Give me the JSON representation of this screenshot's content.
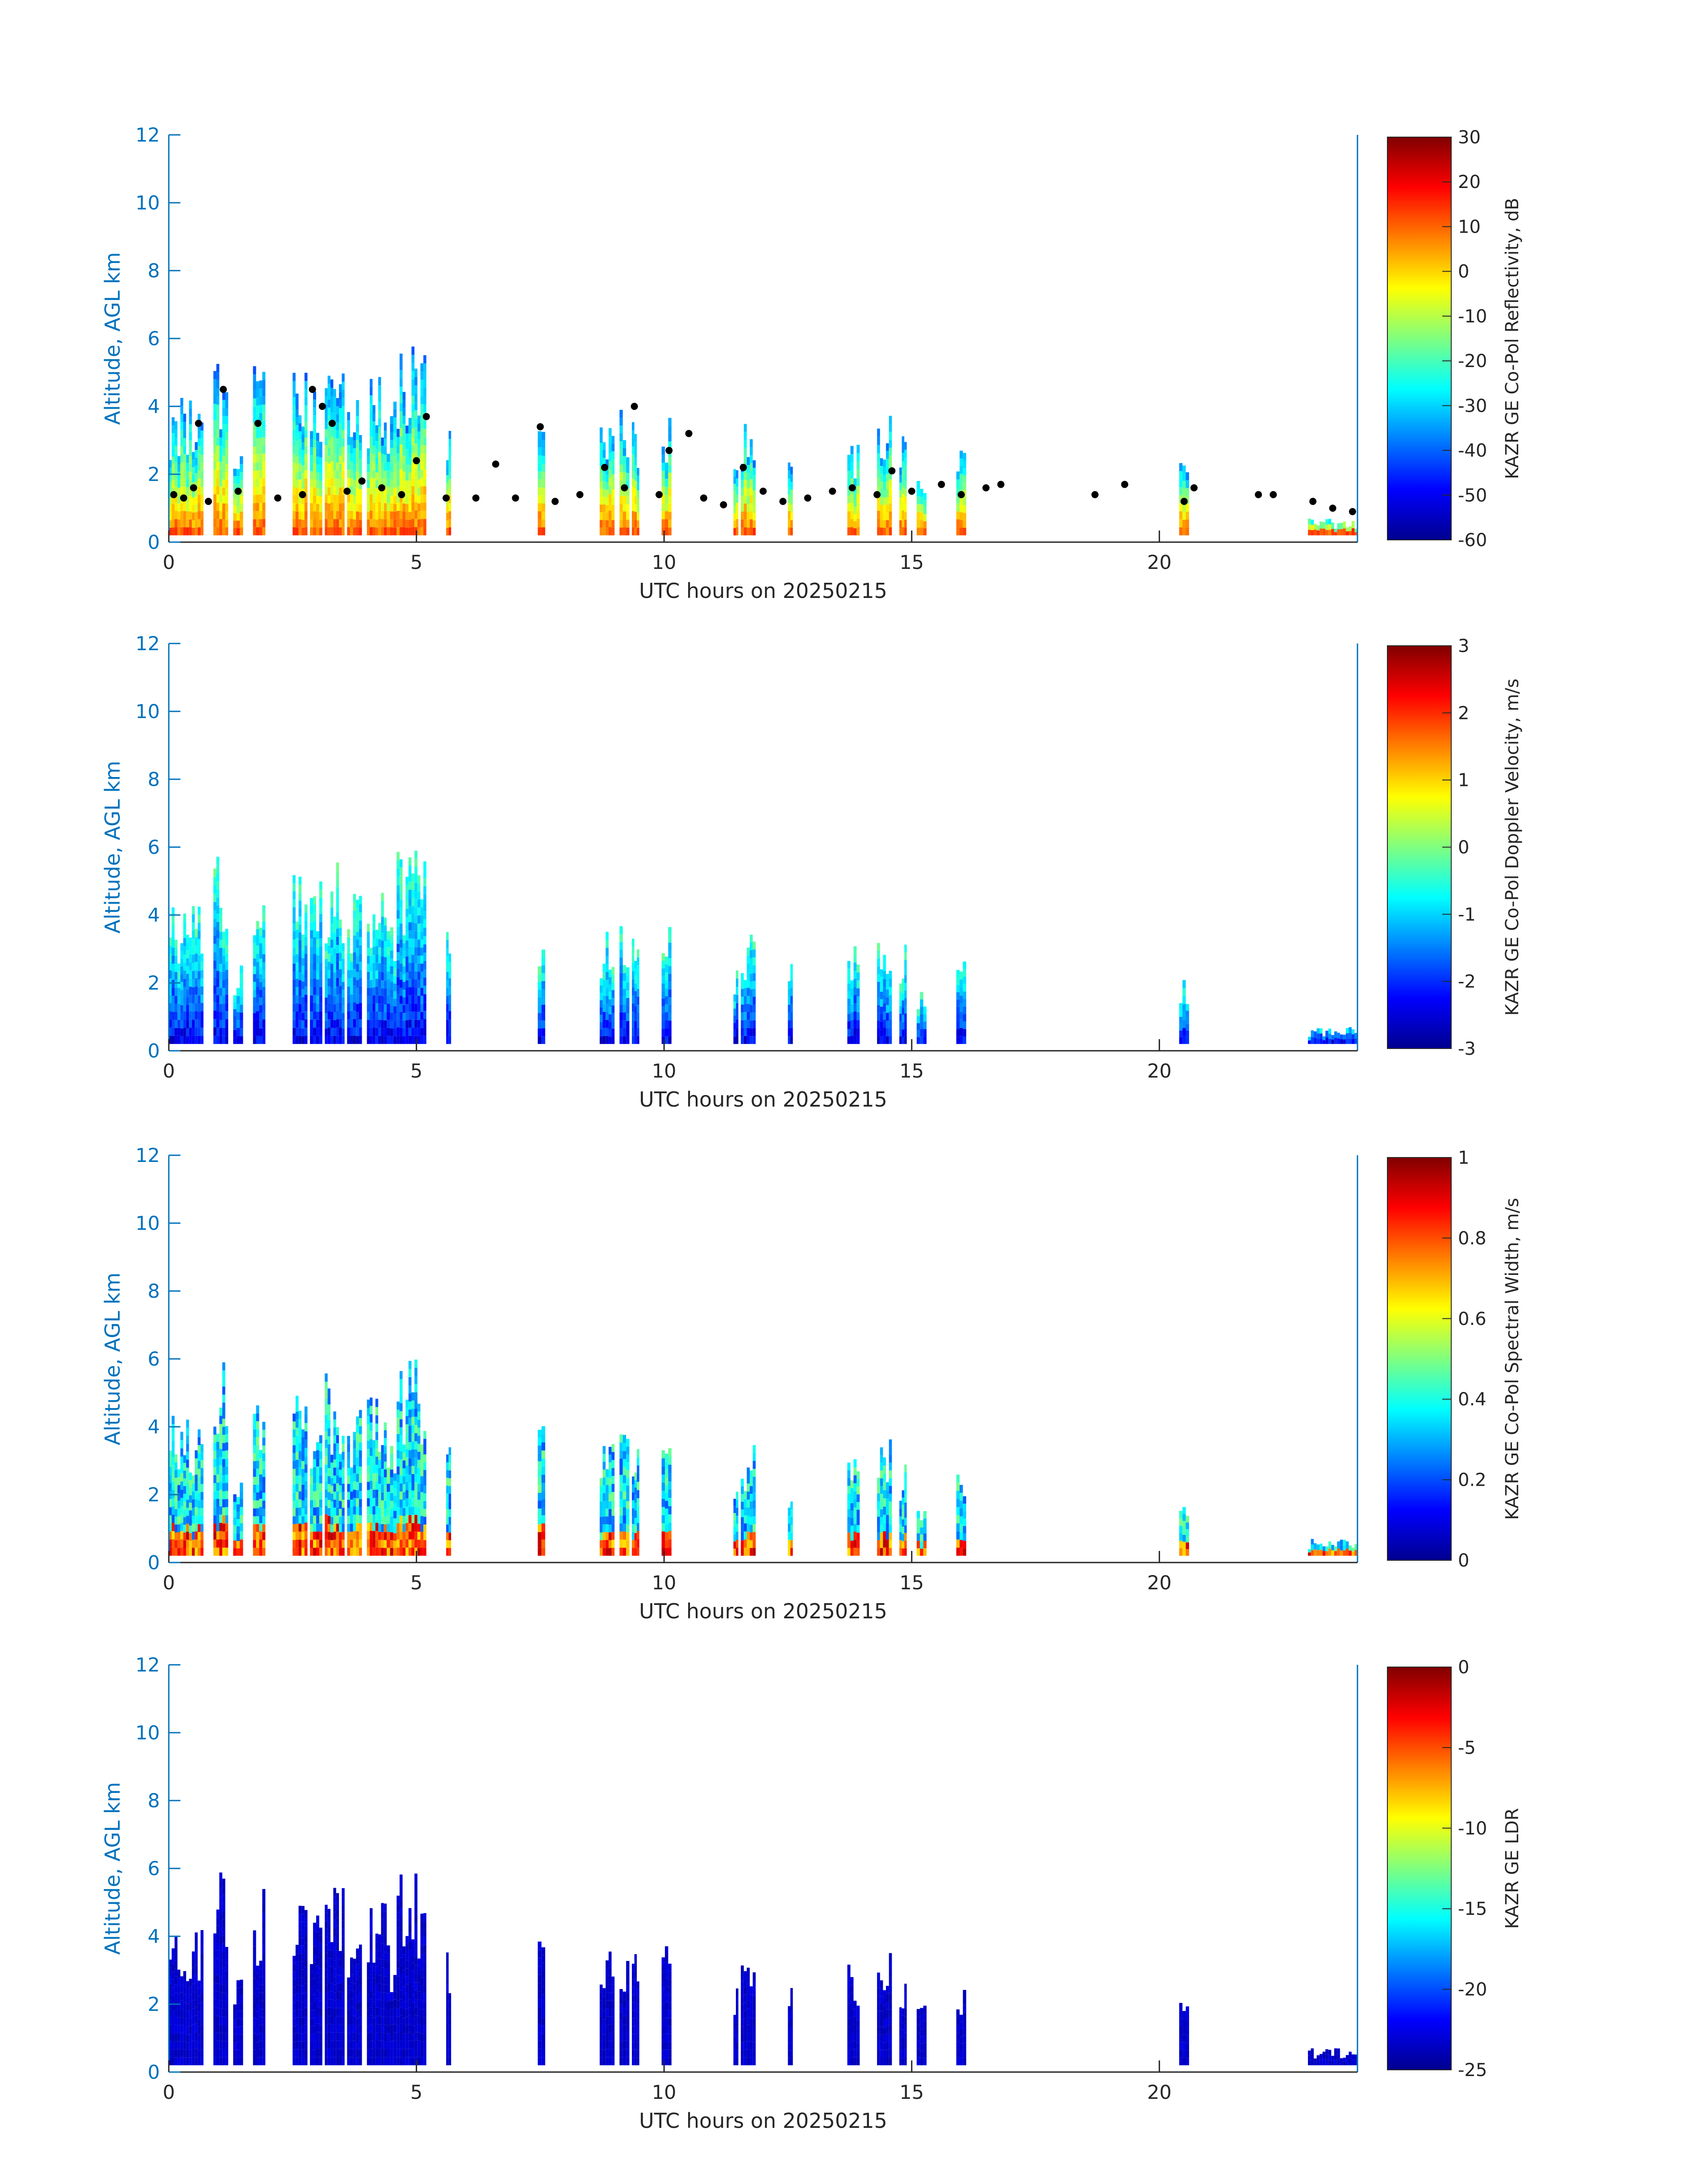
{
  "colors": {
    "axis_y": "#0072bd",
    "axis_x": "#262626",
    "cloud_base_points": "#000000"
  },
  "chart_data": [
    {
      "type": "heatmap",
      "xlabel": "UTC hours on 20250215",
      "ylabel": "Altitude, AGL km",
      "xlim": [
        0,
        24
      ],
      "ylim": [
        0,
        12
      ],
      "xticks": [
        "0",
        "5",
        "10",
        "15",
        "20"
      ],
      "yticks": [
        "0",
        "2",
        "4",
        "6",
        "8",
        "10",
        "12"
      ],
      "colorbar": {
        "label": "KAZR GE Co-Pol Reflectivity, dB",
        "range": [
          -60,
          30
        ],
        "ticks": [
          "-60",
          "-50",
          "-40",
          "-30",
          "-20",
          "-10",
          "0",
          "10",
          "20",
          "30"
        ],
        "colormap": "jet"
      },
      "has_cloud_base_points": true
    },
    {
      "type": "heatmap",
      "xlabel": "UTC hours on 20250215",
      "ylabel": "Altitude, AGL km",
      "xlim": [
        0,
        24
      ],
      "ylim": [
        0,
        12
      ],
      "xticks": [
        "0",
        "5",
        "10",
        "15",
        "20"
      ],
      "yticks": [
        "0",
        "2",
        "4",
        "6",
        "8",
        "10",
        "12"
      ],
      "colorbar": {
        "label": "KAZR GE Co-Pol Doppler Velocity, m/s",
        "range": [
          -3,
          3
        ],
        "ticks": [
          "-3",
          "-2",
          "-1",
          "0",
          "1",
          "2",
          "3"
        ],
        "colormap": "jet"
      },
      "has_cloud_base_points": false
    },
    {
      "type": "heatmap",
      "xlabel": "UTC hours on 20250215",
      "ylabel": "Altitude, AGL km",
      "xlim": [
        0,
        24
      ],
      "ylim": [
        0,
        12
      ],
      "xticks": [
        "0",
        "5",
        "10",
        "15",
        "20"
      ],
      "yticks": [
        "0",
        "2",
        "4",
        "6",
        "8",
        "10",
        "12"
      ],
      "colorbar": {
        "label": "KAZR GE Co-Pol Spectral Width, m/s",
        "range": [
          0,
          1
        ],
        "ticks": [
          "0",
          "0.2",
          "0.4",
          "0.6",
          "0.8",
          "1"
        ],
        "colormap": "jet"
      },
      "has_cloud_base_points": false
    },
    {
      "type": "heatmap",
      "xlabel": "UTC hours on 20250215",
      "ylabel": "Altitude, AGL km",
      "xlim": [
        0,
        24
      ],
      "ylim": [
        0,
        12
      ],
      "xticks": [
        "0",
        "5",
        "10",
        "15",
        "20"
      ],
      "yticks": [
        "0",
        "2",
        "4",
        "6",
        "8",
        "10",
        "12"
      ],
      "colorbar": {
        "label": "KAZR GE LDR",
        "range": [
          -25,
          0
        ],
        "ticks": [
          "-25",
          "-20",
          "-15",
          "-10",
          "-5",
          "0"
        ],
        "colormap": "jet"
      },
      "has_cloud_base_points": false
    }
  ],
  "cloud_columns": [
    {
      "start": 0.0,
      "end": 0.7,
      "top": 4.4
    },
    {
      "start": 0.9,
      "end": 1.2,
      "top": 6.0
    },
    {
      "start": 1.3,
      "end": 1.5,
      "top": 2.8
    },
    {
      "start": 1.7,
      "end": 1.95,
      "top": 5.5
    },
    {
      "start": 2.5,
      "end": 2.8,
      "top": 5.3
    },
    {
      "start": 2.85,
      "end": 3.1,
      "top": 5.0
    },
    {
      "start": 3.15,
      "end": 3.55,
      "top": 5.6
    },
    {
      "start": 3.6,
      "end": 3.9,
      "top": 4.8
    },
    {
      "start": 4.0,
      "end": 4.4,
      "top": 5.0
    },
    {
      "start": 4.4,
      "end": 4.6,
      "top": 4.2
    },
    {
      "start": 4.6,
      "end": 5.2,
      "top": 6.0
    },
    {
      "start": 5.6,
      "end": 5.7,
      "top": 4.2
    },
    {
      "start": 7.45,
      "end": 7.6,
      "top": 4.1
    },
    {
      "start": 8.7,
      "end": 9.0,
      "top": 3.8
    },
    {
      "start": 9.1,
      "end": 9.3,
      "top": 4.2
    },
    {
      "start": 9.35,
      "end": 9.5,
      "top": 3.9
    },
    {
      "start": 9.95,
      "end": 10.15,
      "top": 4.1
    },
    {
      "start": 11.4,
      "end": 11.5,
      "top": 2.8
    },
    {
      "start": 11.55,
      "end": 11.85,
      "top": 3.6
    },
    {
      "start": 12.5,
      "end": 12.6,
      "top": 2.6
    },
    {
      "start": 13.7,
      "end": 13.95,
      "top": 3.2
    },
    {
      "start": 14.3,
      "end": 14.6,
      "top": 3.9
    },
    {
      "start": 14.75,
      "end": 14.9,
      "top": 3.2
    },
    {
      "start": 15.1,
      "end": 15.3,
      "top": 2.2
    },
    {
      "start": 15.9,
      "end": 16.1,
      "top": 2.9
    },
    {
      "start": 20.4,
      "end": 20.6,
      "top": 2.4
    },
    {
      "start": 23.0,
      "end": 24.0,
      "top": 0.7
    }
  ],
  "cloud_base_points": [
    {
      "x": 0.1,
      "y": 1.4
    },
    {
      "x": 0.3,
      "y": 1.3
    },
    {
      "x": 0.5,
      "y": 1.6
    },
    {
      "x": 0.6,
      "y": 3.5
    },
    {
      "x": 0.8,
      "y": 1.2
    },
    {
      "x": 1.1,
      "y": 4.5
    },
    {
      "x": 1.4,
      "y": 1.5
    },
    {
      "x": 1.8,
      "y": 3.5
    },
    {
      "x": 2.2,
      "y": 1.3
    },
    {
      "x": 2.7,
      "y": 1.4
    },
    {
      "x": 2.9,
      "y": 4.5
    },
    {
      "x": 3.1,
      "y": 4.0
    },
    {
      "x": 3.3,
      "y": 3.5
    },
    {
      "x": 3.6,
      "y": 1.5
    },
    {
      "x": 3.9,
      "y": 1.8
    },
    {
      "x": 4.3,
      "y": 1.6
    },
    {
      "x": 4.7,
      "y": 1.4
    },
    {
      "x": 5.0,
      "y": 2.4
    },
    {
      "x": 5.2,
      "y": 3.7
    },
    {
      "x": 5.6,
      "y": 1.3
    },
    {
      "x": 6.2,
      "y": 1.3
    },
    {
      "x": 6.6,
      "y": 2.3
    },
    {
      "x": 7.0,
      "y": 1.3
    },
    {
      "x": 7.5,
      "y": 3.4
    },
    {
      "x": 7.8,
      "y": 1.2
    },
    {
      "x": 8.3,
      "y": 1.4
    },
    {
      "x": 8.8,
      "y": 2.2
    },
    {
      "x": 9.2,
      "y": 1.6
    },
    {
      "x": 9.4,
      "y": 4.0
    },
    {
      "x": 9.9,
      "y": 1.4
    },
    {
      "x": 10.1,
      "y": 2.7
    },
    {
      "x": 10.5,
      "y": 3.2
    },
    {
      "x": 10.8,
      "y": 1.3
    },
    {
      "x": 11.2,
      "y": 1.1
    },
    {
      "x": 11.6,
      "y": 2.2
    },
    {
      "x": 12.0,
      "y": 1.5
    },
    {
      "x": 12.4,
      "y": 1.2
    },
    {
      "x": 12.9,
      "y": 1.3
    },
    {
      "x": 13.4,
      "y": 1.5
    },
    {
      "x": 13.8,
      "y": 1.6
    },
    {
      "x": 14.3,
      "y": 1.4
    },
    {
      "x": 14.6,
      "y": 2.1
    },
    {
      "x": 15.0,
      "y": 1.5
    },
    {
      "x": 15.6,
      "y": 1.7
    },
    {
      "x": 16.0,
      "y": 1.4
    },
    {
      "x": 16.5,
      "y": 1.6
    },
    {
      "x": 16.8,
      "y": 1.7
    },
    {
      "x": 18.7,
      "y": 1.4
    },
    {
      "x": 19.3,
      "y": 1.7
    },
    {
      "x": 20.5,
      "y": 1.2
    },
    {
      "x": 20.7,
      "y": 1.6
    },
    {
      "x": 22.0,
      "y": 1.4
    },
    {
      "x": 22.3,
      "y": 1.4
    },
    {
      "x": 23.1,
      "y": 1.2
    },
    {
      "x": 23.5,
      "y": 1.0
    },
    {
      "x": 23.9,
      "y": 0.9
    }
  ]
}
